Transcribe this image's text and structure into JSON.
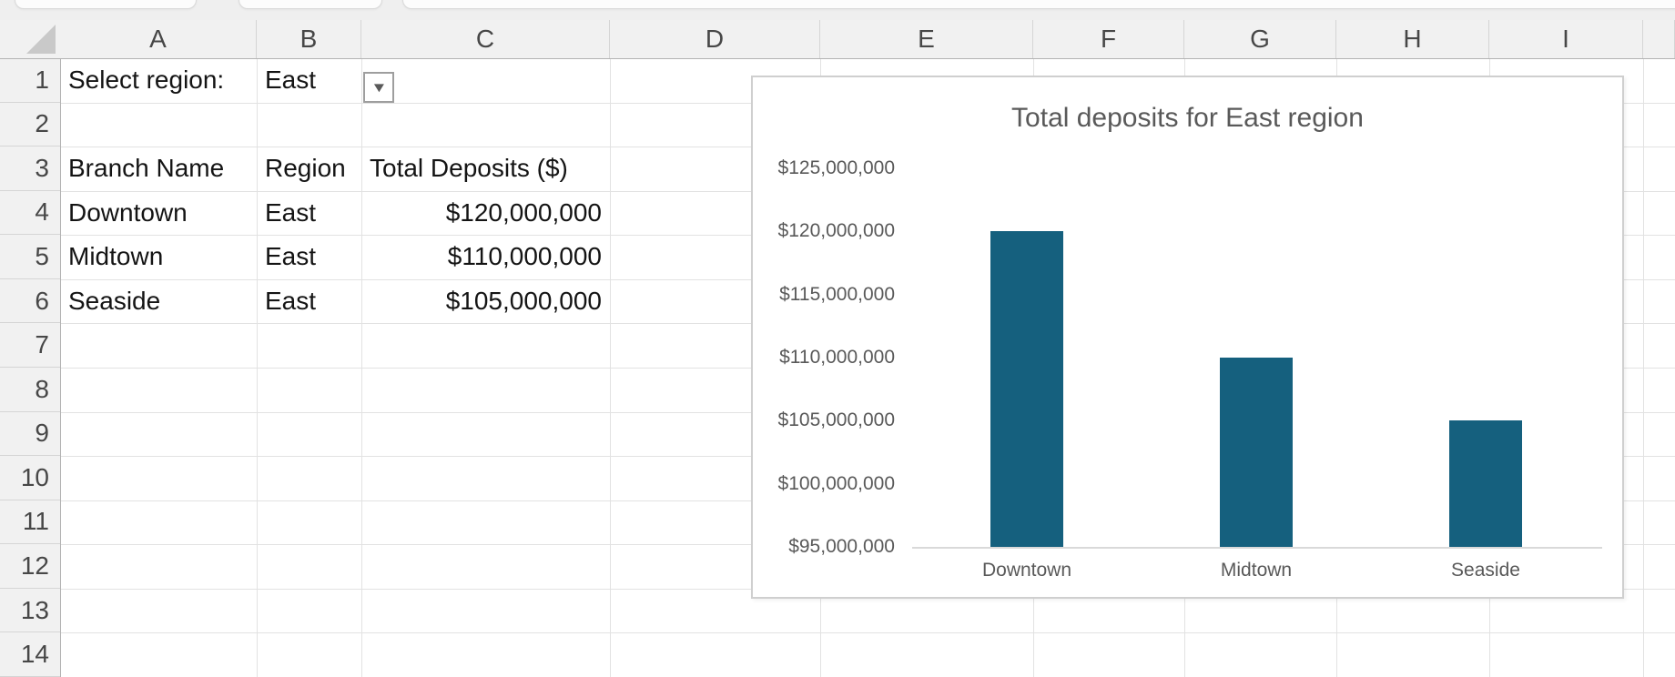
{
  "grid": {
    "column_headers": [
      "A",
      "B",
      "C",
      "D",
      "E",
      "F",
      "G",
      "H",
      "I"
    ],
    "row_headers": [
      "1",
      "2",
      "3",
      "4",
      "5",
      "6",
      "7",
      "8",
      "9",
      "10",
      "11",
      "12",
      "13",
      "14"
    ]
  },
  "region_selector": {
    "label": "Select region:",
    "value": "East",
    "dropdown_icon": "▼"
  },
  "table": {
    "headers": [
      "Branch Name",
      "Region",
      "Total Deposits ($)"
    ],
    "rows": [
      [
        "Downtown",
        "East",
        "$120,000,000"
      ],
      [
        "Midtown",
        "East",
        "$110,000,000"
      ],
      [
        "Seaside",
        "East",
        "$105,000,000"
      ]
    ]
  },
  "chart_data": {
    "type": "bar",
    "title": "Total deposits for East region",
    "categories": [
      "Downtown",
      "Midtown",
      "Seaside"
    ],
    "values": [
      120000000,
      110000000,
      105000000
    ],
    "xlabel": "",
    "ylabel": "",
    "ylim": [
      95000000,
      125000000
    ],
    "y_tick_step": 5000000,
    "y_tick_labels": [
      "$125,000,000",
      "$120,000,000",
      "$115,000,000",
      "$110,000,000",
      "$105,000,000",
      "$100,000,000",
      "$95,000,000"
    ],
    "grid": "off",
    "legend": "none",
    "bar_color": "#15607E",
    "title_color": "#595959",
    "axis_label_color": "#595959"
  }
}
